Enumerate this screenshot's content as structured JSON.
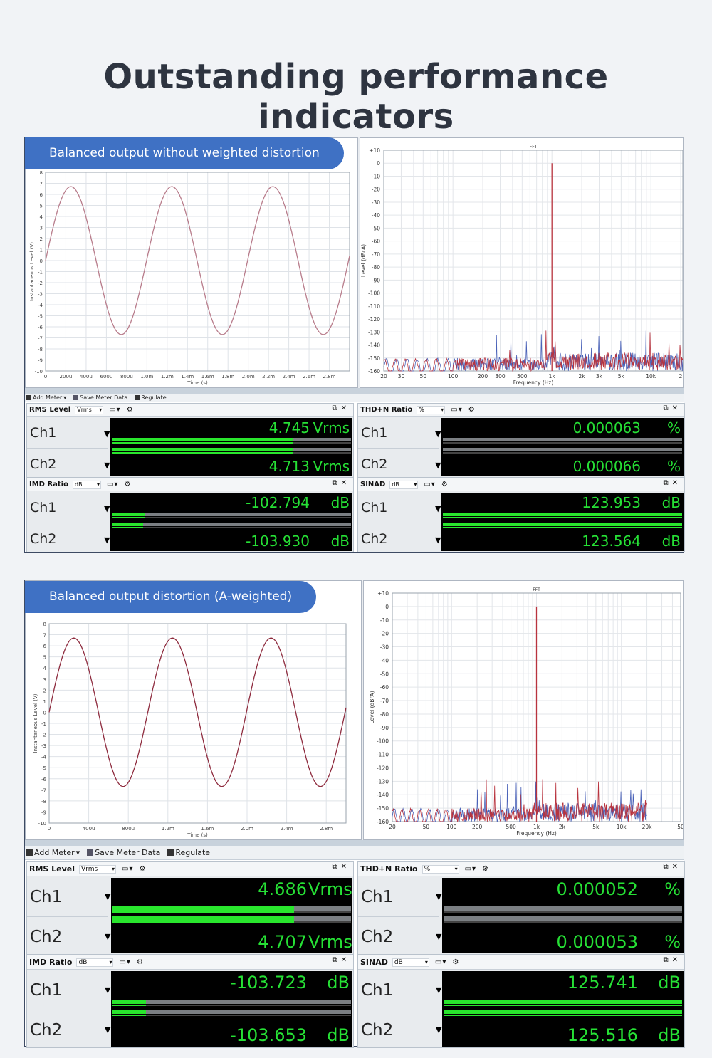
{
  "page_title": "Outstanding performance indicators",
  "panels": [
    {
      "badge": "Balanced output without weighted distortion",
      "scope": {
        "ylabel": "Instantaneous Level (V)",
        "xlabel": "Time (s)",
        "yticks": [
          "8",
          "7",
          "6",
          "5",
          "4",
          "3",
          "2",
          "1",
          "0",
          "-1",
          "-2",
          "-3",
          "-4",
          "-5",
          "-6",
          "-7",
          "-8",
          "-9",
          "-10"
        ],
        "xticks": [
          "0",
          "200u",
          "400u",
          "600u",
          "800u",
          "1.0m",
          "1.2m",
          "1.4m",
          "1.6m",
          "1.8m",
          "2.0m",
          "2.2m",
          "2.4m",
          "2.6m",
          "2.8m"
        ],
        "color": "#b87c8b"
      },
      "fft": {
        "title": "FFT",
        "ylabel": "Level (dBrA)",
        "xlabel": "Frequency (Hz)",
        "yticks": [
          "+10",
          "0",
          "-10",
          "-20",
          "-30",
          "-40",
          "-50",
          "-60",
          "-70",
          "-80",
          "-90",
          "-100",
          "-110",
          "-120",
          "-130",
          "-140",
          "-150",
          "-160"
        ],
        "xticks": [
          "20",
          "30",
          "50",
          "100",
          "200",
          "300",
          "500",
          "1k",
          "2k",
          "3k",
          "5k",
          "10k",
          "2"
        ]
      },
      "toolbar": {
        "add_meter": "Add Meter",
        "save": "Save Meter Data",
        "regulate": "Regulate"
      },
      "meters": [
        {
          "title": "RMS Level",
          "unit": "Vrms",
          "ch1": {
            "label": "Ch1",
            "value": "4.745",
            "unit": "Vrms",
            "fill": 0.76
          },
          "ch2": {
            "label": "Ch2",
            "value": "4.713",
            "unit": "Vrms",
            "fill": 0.76
          }
        },
        {
          "title": "THD+N Ratio",
          "unit": "%",
          "ch1": {
            "label": "Ch1",
            "value": "0.000063",
            "unit": "%",
            "fill": 0.0
          },
          "ch2": {
            "label": "Ch2",
            "value": "0.000066",
            "unit": "%",
            "fill": 0.0
          }
        },
        {
          "title": "IMD Ratio",
          "unit": "dB",
          "ch1": {
            "label": "Ch1",
            "value": "-102.794",
            "unit": "dB",
            "fill": 0.14
          },
          "ch2": {
            "label": "Ch2",
            "value": "-103.930",
            "unit": "dB",
            "fill": 0.13
          }
        },
        {
          "title": "SINAD",
          "unit": "dB",
          "ch1": {
            "label": "Ch1",
            "value": "123.953",
            "unit": "dB",
            "fill": 1.0
          },
          "ch2": {
            "label": "Ch2",
            "value": "123.564",
            "unit": "dB",
            "fill": 1.0
          }
        }
      ]
    },
    {
      "badge": "Balanced output distortion (A-weighted)",
      "scope": {
        "ylabel": "Instantaneous Level (V)",
        "xlabel": "Time (s)",
        "yticks": [
          "8",
          "7",
          "6",
          "5",
          "4",
          "3",
          "2",
          "1",
          "0",
          "-1",
          "-2",
          "-3",
          "-4",
          "-5",
          "-6",
          "-7",
          "-8",
          "-9",
          "-10"
        ],
        "xticks": [
          "0",
          "400u",
          "800u",
          "1.2m",
          "1.6m",
          "2.0m",
          "2.4m",
          "2.8m"
        ],
        "color": "#8e2b3e"
      },
      "fft": {
        "title": "FFT",
        "ylabel": "Level (dBrA)",
        "xlabel": "Frequency (Hz)",
        "yticks": [
          "+10",
          "0",
          "-10",
          "-20",
          "-30",
          "-40",
          "-50",
          "-60",
          "-70",
          "-80",
          "-90",
          "-100",
          "-110",
          "-120",
          "-130",
          "-140",
          "-150",
          "-160"
        ],
        "xticks": [
          "20",
          "50",
          "100",
          "200",
          "500",
          "1k",
          "2k",
          "5k",
          "10k",
          "20k",
          "50"
        ]
      },
      "toolbar": {
        "add_meter": "Add Meter",
        "save": "Save Meter Data",
        "regulate": "Regulate"
      },
      "meters": [
        {
          "title": "RMS Level",
          "unit": "Vrms",
          "ch1": {
            "label": "Ch1",
            "value": "4.686",
            "unit": "Vrms",
            "fill": 0.76
          },
          "ch2": {
            "label": "Ch2",
            "value": "4.707",
            "unit": "Vrms",
            "fill": 0.76
          }
        },
        {
          "title": "THD+N Ratio",
          "unit": "%",
          "ch1": {
            "label": "Ch1",
            "value": "0.000052",
            "unit": "%",
            "fill": 0.0
          },
          "ch2": {
            "label": "Ch2",
            "value": "0.000053",
            "unit": "%",
            "fill": 0.0
          }
        },
        {
          "title": "IMD Ratio",
          "unit": "dB",
          "ch1": {
            "label": "Ch1",
            "value": "-103.723",
            "unit": "dB",
            "fill": 0.14
          },
          "ch2": {
            "label": "Ch2",
            "value": "-103.653",
            "unit": "dB",
            "fill": 0.14
          }
        },
        {
          "title": "SINAD",
          "unit": "dB",
          "ch1": {
            "label": "Ch1",
            "value": "125.741",
            "unit": "dB",
            "fill": 1.0
          },
          "ch2": {
            "label": "Ch2",
            "value": "125.516",
            "unit": "dB",
            "fill": 1.0
          }
        }
      ]
    }
  ]
}
